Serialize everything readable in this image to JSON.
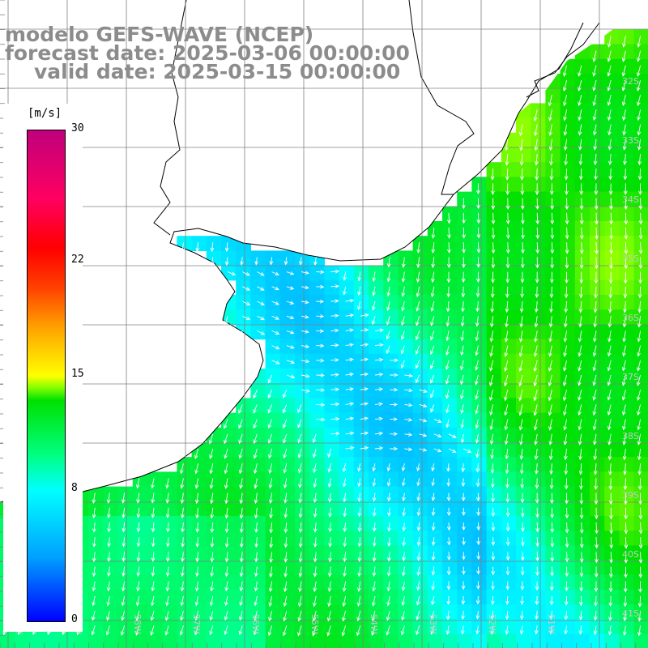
{
  "title": {
    "line1": "modelo GEFS-WAVE (NCEP)",
    "line2": "forecast date: 2025-03-06 00:00:00",
    "line3": "valid date: 2025-03-15 00:00:00"
  },
  "colorbar": {
    "units": "[m/s]",
    "min": 0,
    "max": 30,
    "ticks": [
      {
        "label": "30",
        "value": 30
      },
      {
        "label": "22",
        "value": 22
      },
      {
        "label": "15",
        "value": 15
      },
      {
        "label": "8",
        "value": 8
      },
      {
        "label": "0",
        "value": 0
      }
    ]
  },
  "axes": {
    "lat_labels": [
      "32S",
      "33S",
      "34S",
      "35S",
      "36S",
      "37S",
      "38S",
      "39S",
      "40S",
      "41S"
    ],
    "lon_labels": [
      "61W",
      "59W",
      "58W",
      "57W",
      "56W",
      "55W",
      "54W",
      "53W",
      "52W",
      "51W"
    ]
  },
  "map": {
    "variable": "wind speed (m/s)",
    "grid_lines": "gray",
    "arrows": "white",
    "land": "white",
    "coastline": "black"
  }
}
